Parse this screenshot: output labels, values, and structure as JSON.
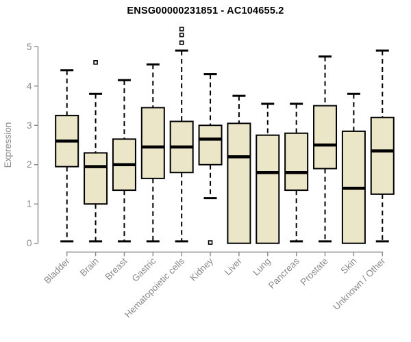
{
  "chart_data": {
    "type": "boxplot",
    "title": "ENSG00000231851 - AC104655.2",
    "ylabel": "Expression",
    "xlabel": "",
    "ylim": [
      0,
      5
    ],
    "yticks": [
      0,
      1,
      2,
      3,
      4,
      5
    ],
    "grid": false,
    "legend": "none",
    "categories": [
      "Bladder",
      "Brain",
      "Breast",
      "Gastric",
      "Hematopoietic cells",
      "Kidney",
      "Liver",
      "Lung",
      "Pancreas",
      "Prostate",
      "Skin",
      "Unknown / Other"
    ],
    "series": [
      {
        "category": "Bladder",
        "whisker_low": 0.05,
        "q1": 1.95,
        "median": 2.6,
        "q3": 3.25,
        "whisker_high": 4.4,
        "outliers": []
      },
      {
        "category": "Brain",
        "whisker_low": 0.05,
        "q1": 1.0,
        "median": 1.95,
        "q3": 2.3,
        "whisker_high": 3.8,
        "outliers": [
          4.6
        ]
      },
      {
        "category": "Breast",
        "whisker_low": 0.05,
        "q1": 1.35,
        "median": 2.0,
        "q3": 2.65,
        "whisker_high": 4.15,
        "outliers": []
      },
      {
        "category": "Gastric",
        "whisker_low": 0.05,
        "q1": 1.65,
        "median": 2.45,
        "q3": 3.45,
        "whisker_high": 4.55,
        "outliers": []
      },
      {
        "category": "Hematopoietic cells",
        "whisker_low": 0.05,
        "q1": 1.8,
        "median": 2.45,
        "q3": 3.1,
        "whisker_high": 4.9,
        "outliers": [
          5.1,
          5.3,
          5.45
        ]
      },
      {
        "category": "Kidney",
        "whisker_low": 1.15,
        "q1": 2.0,
        "median": 2.65,
        "q3": 3.0,
        "whisker_high": 4.3,
        "outliers": [
          0.02
        ]
      },
      {
        "category": "Liver",
        "whisker_low": 0.0,
        "q1": 0.0,
        "median": 2.2,
        "q3": 3.05,
        "whisker_high": 3.75,
        "outliers": []
      },
      {
        "category": "Lung",
        "whisker_low": 0.0,
        "q1": 0.0,
        "median": 1.8,
        "q3": 2.75,
        "whisker_high": 3.55,
        "outliers": []
      },
      {
        "category": "Pancreas",
        "whisker_low": 0.05,
        "q1": 1.35,
        "median": 1.8,
        "q3": 2.8,
        "whisker_high": 3.55,
        "outliers": []
      },
      {
        "category": "Prostate",
        "whisker_low": 0.05,
        "q1": 1.9,
        "median": 2.5,
        "q3": 3.5,
        "whisker_high": 4.75,
        "outliers": []
      },
      {
        "category": "Skin",
        "whisker_low": 0.0,
        "q1": 0.0,
        "median": 1.4,
        "q3": 2.85,
        "whisker_high": 3.8,
        "outliers": []
      },
      {
        "category": "Unknown / Other",
        "whisker_low": 0.05,
        "q1": 1.25,
        "median": 2.35,
        "q3": 3.2,
        "whisker_high": 4.9,
        "outliers": []
      }
    ],
    "colors": {
      "box_fill": "#ECE6C9",
      "box_stroke": "#000000",
      "median": "#000000",
      "whisker": "#000000",
      "axis": "#8a8a8a",
      "tick_label": "#8a8a8a",
      "title": "#000000",
      "background": "#ffffff"
    }
  }
}
